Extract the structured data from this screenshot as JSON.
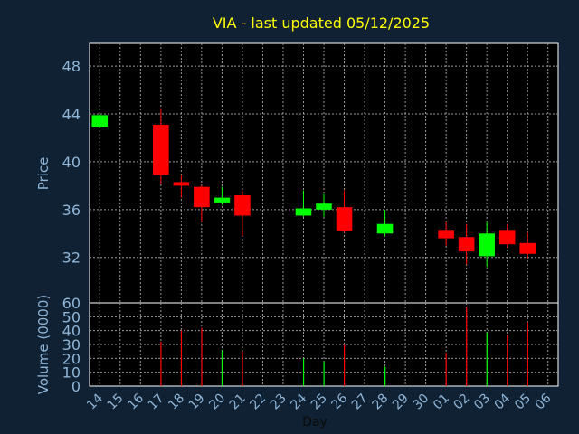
{
  "colors": {
    "background": "#0f2133",
    "plot_background": "#000000",
    "frame": "#ffffff",
    "grid": "#9a9a9a",
    "title": "#ffff00",
    "axis_text": "#8fb4d6",
    "axis_title": "#8fb4d6",
    "up": "#00ff00",
    "down": "#ff0000"
  },
  "chart_data": [
    {
      "type": "candlestick",
      "title": "VIA - last updated 05/12/2025",
      "ylabel": "Price",
      "ylim": [
        28.2,
        49.9
      ],
      "yticks": [
        32,
        36,
        40,
        44,
        48
      ],
      "grid": true,
      "x": [
        "14",
        "15",
        "16",
        "17",
        "18",
        "19",
        "20",
        "21",
        "22",
        "23",
        "24",
        "25",
        "26",
        "27",
        "28",
        "29",
        "30",
        "01",
        "02",
        "03",
        "04",
        "05",
        "06"
      ],
      "candles": [
        {
          "x": "14",
          "open": 42.9,
          "close": 43.9,
          "high": 44.0,
          "low": 42.8
        },
        {
          "x": "17",
          "open": 43.1,
          "close": 38.9,
          "high": 44.5,
          "low": 38.1
        },
        {
          "x": "18",
          "open": 38.3,
          "close": 38.0,
          "high": 38.9,
          "low": 37.0
        },
        {
          "x": "19",
          "open": 37.9,
          "close": 36.2,
          "high": 38.0,
          "low": 35.0
        },
        {
          "x": "20",
          "open": 36.6,
          "close": 37.0,
          "high": 37.9,
          "low": 36.4
        },
        {
          "x": "21",
          "open": 37.2,
          "close": 35.5,
          "high": 37.6,
          "low": 33.8
        },
        {
          "x": "24",
          "open": 35.5,
          "close": 36.1,
          "high": 37.6,
          "low": 35.4
        },
        {
          "x": "25",
          "open": 36.0,
          "close": 36.5,
          "high": 37.3,
          "low": 35.4
        },
        {
          "x": "26",
          "open": 36.2,
          "close": 34.2,
          "high": 37.6,
          "low": 34.1
        },
        {
          "x": "28",
          "open": 34.0,
          "close": 34.8,
          "high": 36.0,
          "low": 33.8
        },
        {
          "x": "01",
          "open": 34.3,
          "close": 33.6,
          "high": 35.0,
          "low": 33.0
        },
        {
          "x": "02",
          "open": 33.7,
          "close": 32.5,
          "high": 34.8,
          "low": 31.4
        },
        {
          "x": "03",
          "open": 32.1,
          "close": 34.0,
          "high": 35.0,
          "low": 31.2
        },
        {
          "x": "04",
          "open": 34.3,
          "close": 33.1,
          "high": 34.8,
          "low": 32.8
        },
        {
          "x": "05",
          "open": 33.2,
          "close": 32.3,
          "high": 34.1,
          "low": 31.9
        }
      ]
    },
    {
      "type": "bar",
      "ylabel": "Volume (0000)",
      "xlabel": "Day",
      "ylim": [
        0,
        60
      ],
      "yticks": [
        0,
        10,
        20,
        30,
        40,
        50,
        60
      ],
      "grid": true,
      "x": [
        "14",
        "15",
        "16",
        "17",
        "18",
        "19",
        "20",
        "21",
        "22",
        "23",
        "24",
        "25",
        "26",
        "27",
        "28",
        "29",
        "30",
        "01",
        "02",
        "03",
        "04",
        "05",
        "06"
      ],
      "bars": [
        {
          "x": "17",
          "value": 32,
          "dir": "down"
        },
        {
          "x": "18",
          "value": 40,
          "dir": "down"
        },
        {
          "x": "19",
          "value": 42,
          "dir": "down"
        },
        {
          "x": "20",
          "value": 26,
          "dir": "up"
        },
        {
          "x": "21",
          "value": 25,
          "dir": "down"
        },
        {
          "x": "24",
          "value": 20,
          "dir": "up"
        },
        {
          "x": "25",
          "value": 18,
          "dir": "up"
        },
        {
          "x": "26",
          "value": 30,
          "dir": "down"
        },
        {
          "x": "28",
          "value": 14,
          "dir": "up"
        },
        {
          "x": "01",
          "value": 24,
          "dir": "down"
        },
        {
          "x": "02",
          "value": 57,
          "dir": "down"
        },
        {
          "x": "03",
          "value": 39,
          "dir": "up"
        },
        {
          "x": "04",
          "value": 37,
          "dir": "down"
        },
        {
          "x": "05",
          "value": 46,
          "dir": "down"
        }
      ]
    }
  ]
}
